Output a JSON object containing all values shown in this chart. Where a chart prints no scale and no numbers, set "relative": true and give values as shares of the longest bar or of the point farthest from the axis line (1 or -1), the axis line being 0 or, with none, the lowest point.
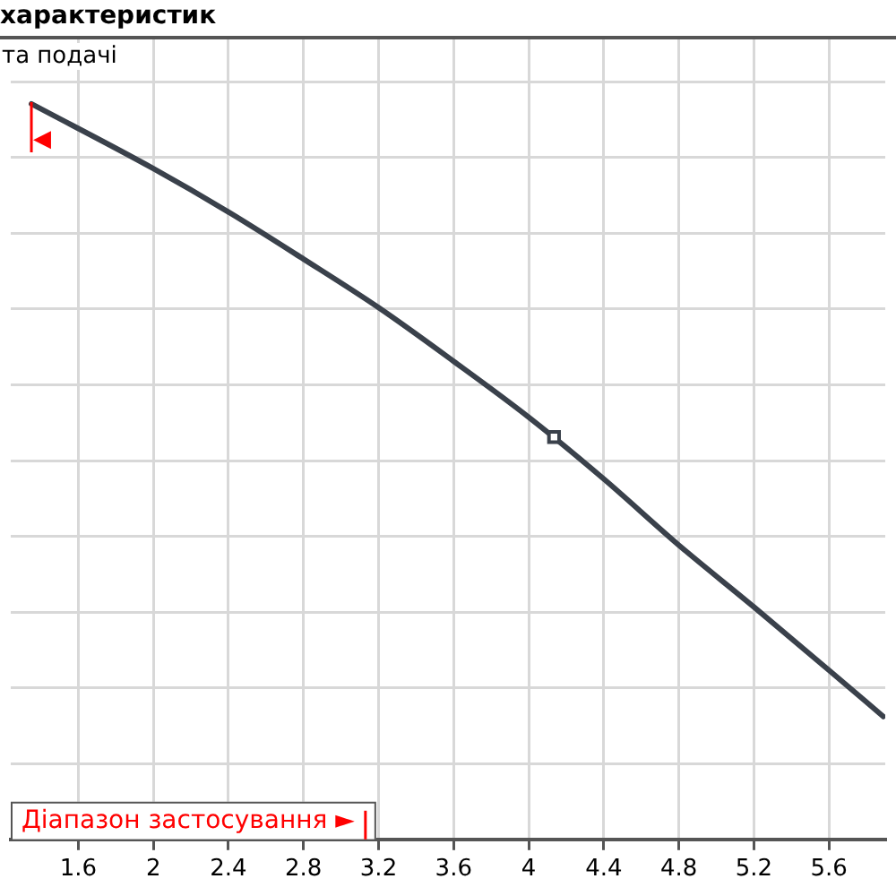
{
  "chart_data": {
    "type": "line",
    "title": "характеристик",
    "subtitle": "та подачі",
    "relative": true,
    "xlim": [
      1.24,
      5.9
    ],
    "xticks": [
      1.6,
      2,
      2.4,
      2.8,
      3.2,
      3.6,
      4,
      4.4,
      4.8,
      5.2,
      5.6
    ],
    "grid": true,
    "legend": false,
    "series": [
      {
        "color": "#3a414b",
        "marker": "none",
        "x": [
          1.35,
          2.0,
          2.4,
          2.8,
          3.2,
          3.6,
          4.0,
          4.4,
          4.8,
          5.2,
          5.6,
          5.89
        ],
        "values": [
          1.0,
          0.912,
          0.853,
          0.789,
          0.723,
          0.65,
          0.574,
          0.49,
          0.4,
          0.316,
          0.23,
          0.167
        ]
      },
      {
        "type": "scatter",
        "color": "#3a414b",
        "marker": "square",
        "x": [
          4.135
        ],
        "values": [
          0.547
        ]
      }
    ],
    "ref_lines": [
      {
        "axis": "x",
        "value": 1.35,
        "label": "◀",
        "color": "#ff0000"
      },
      {
        "axis": "x",
        "value": 3.13,
        "label": "Діапазон застосування ►",
        "color": "#ff0000"
      }
    ]
  }
}
